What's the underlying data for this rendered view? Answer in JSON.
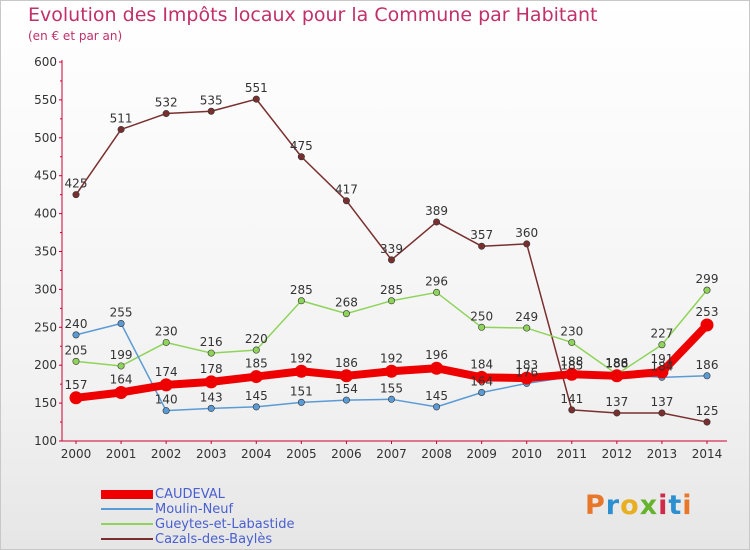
{
  "header": {
    "title": "Evolution des Impôts locaux pour la Commune par Habitant",
    "subtitle": "(en € et par an)"
  },
  "logo": {
    "text": "Proxiti",
    "colors": [
      "#e8772a",
      "#2b8fd0",
      "#e8b020",
      "#66b32e",
      "#d02a4a",
      "#2b8fd0",
      "#e8772a"
    ]
  },
  "chart_data": {
    "type": "line",
    "title": "Evolution des Impôts locaux pour la Commune par Habitant",
    "subtitle": "(en € et par an)",
    "xlabel": "",
    "ylabel": "",
    "ylim": [
      100,
      600
    ],
    "yticks": [
      100,
      150,
      200,
      250,
      300,
      350,
      400,
      450,
      500,
      550,
      600
    ],
    "grid": false,
    "legend_position": "bottom-left",
    "categories": [
      "2000",
      "2001",
      "2002",
      "2003",
      "2004",
      "2005",
      "2006",
      "2007",
      "2008",
      "2009",
      "2010",
      "2011",
      "2012",
      "2013",
      "2014"
    ],
    "series": [
      {
        "name": "CAUDEVAL",
        "color": "#ee0000",
        "values": [
          157,
          164,
          174,
          178,
          185,
          192,
          186,
          192,
          196,
          184,
          183,
          188,
          186,
          191,
          253
        ]
      },
      {
        "name": "Moulin-Neuf",
        "color": "#5b9bd5",
        "values": [
          240,
          255,
          140,
          143,
          145,
          151,
          154,
          155,
          145,
          164,
          176,
          185,
          188,
          184,
          186
        ]
      },
      {
        "name": "Gueytes-et-Labastide",
        "color": "#8fd45a",
        "values": [
          205,
          199,
          230,
          216,
          220,
          285,
          268,
          285,
          296,
          250,
          249,
          230,
          188,
          227,
          299
        ]
      },
      {
        "name": "Cazals-des-Baylès",
        "color": "#7a2f2f",
        "values": [
          425,
          511,
          532,
          535,
          551,
          475,
          417,
          339,
          389,
          357,
          360,
          141,
          137,
          137,
          125
        ]
      }
    ]
  }
}
